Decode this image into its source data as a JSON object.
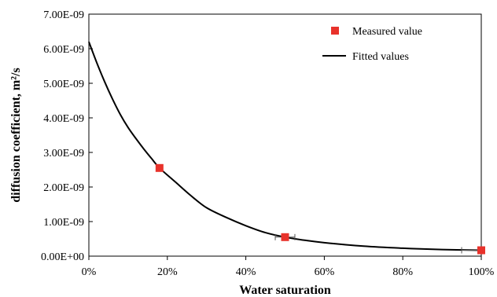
{
  "chart_data": {
    "type": "scatter",
    "title": "",
    "xlabel": "Water saturation",
    "ylabel": "diffusion coefficient, m²/s",
    "xlim": [
      0,
      100
    ],
    "ylim": [
      0,
      7e-09
    ],
    "x_ticks": [
      0,
      20,
      40,
      60,
      80,
      100
    ],
    "x_tick_labels": [
      "0%",
      "20%",
      "40%",
      "60%",
      "80%",
      "100%"
    ],
    "y_ticks": [
      0,
      1e-09,
      2e-09,
      3e-09,
      4e-09,
      5e-09,
      6e-09,
      7e-09
    ],
    "y_tick_labels": [
      "0.00E+00",
      "1.00E-09",
      "2.00E-09",
      "3.00E-09",
      "4.00E-09",
      "5.00E-09",
      "6.00E-09",
      "7.00E-09"
    ],
    "grid": false,
    "legend_position": "top-right",
    "series": [
      {
        "name": "Measured value",
        "kind": "marker",
        "color": "#e8322b",
        "points": [
          {
            "x": 18,
            "y": 2.55e-09,
            "x_err": 0.5
          },
          {
            "x": 50,
            "y": 5.5e-10,
            "x_err": 2.5
          },
          {
            "x": 100,
            "y": 1.7e-10,
            "x_err": 5
          }
        ]
      },
      {
        "name": "Fitted values",
        "kind": "line",
        "color": "#000000",
        "points": [
          {
            "x": 0,
            "y": 6.2e-09
          },
          {
            "x": 2,
            "y": 5.6e-09
          },
          {
            "x": 4,
            "y": 5.05e-09
          },
          {
            "x": 6,
            "y": 4.55e-09
          },
          {
            "x": 8,
            "y": 4.1e-09
          },
          {
            "x": 10,
            "y": 3.72e-09
          },
          {
            "x": 12,
            "y": 3.4e-09
          },
          {
            "x": 14,
            "y": 3.1e-09
          },
          {
            "x": 16,
            "y": 2.82e-09
          },
          {
            "x": 18,
            "y": 2.55e-09
          },
          {
            "x": 22,
            "y": 2.15e-09
          },
          {
            "x": 26,
            "y": 1.75e-09
          },
          {
            "x": 30,
            "y": 1.4e-09
          },
          {
            "x": 35,
            "y": 1.12e-09
          },
          {
            "x": 40,
            "y": 8.8e-10
          },
          {
            "x": 45,
            "y": 6.8e-10
          },
          {
            "x": 50,
            "y": 5.5e-10
          },
          {
            "x": 55,
            "y": 4.6e-10
          },
          {
            "x": 60,
            "y": 3.9e-10
          },
          {
            "x": 70,
            "y": 2.9e-10
          },
          {
            "x": 80,
            "y": 2.3e-10
          },
          {
            "x": 90,
            "y": 1.9e-10
          },
          {
            "x": 100,
            "y": 1.7e-10
          }
        ]
      }
    ]
  }
}
